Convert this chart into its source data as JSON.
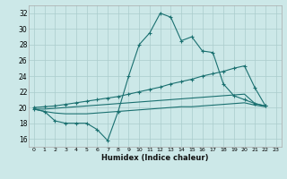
{
  "xlabel": "Humidex (Indice chaleur)",
  "background_color": "#cce8e8",
  "grid_color": "#aacccc",
  "line_color": "#1a7070",
  "xlim": [
    -0.5,
    23.5
  ],
  "ylim": [
    15,
    33
  ],
  "xticks": [
    0,
    1,
    2,
    3,
    4,
    5,
    6,
    7,
    8,
    9,
    10,
    11,
    12,
    13,
    14,
    15,
    16,
    17,
    18,
    19,
    20,
    21,
    22,
    23
  ],
  "yticks": [
    16,
    18,
    20,
    22,
    24,
    26,
    28,
    30,
    32
  ],
  "curve_main": [
    19.8,
    19.5,
    18.3,
    18.0,
    18.0,
    18.0,
    17.2,
    15.8,
    19.5,
    24.0,
    28.0,
    29.5,
    32.0,
    31.5,
    28.5,
    29.0,
    27.2,
    27.0,
    23.0,
    21.5,
    21.0,
    20.5,
    20.2
  ],
  "curve_top": [
    20.0,
    20.1,
    20.2,
    20.4,
    20.6,
    20.8,
    21.0,
    21.2,
    21.4,
    21.7,
    22.0,
    22.3,
    22.6,
    23.0,
    23.3,
    23.6,
    24.0,
    24.3,
    24.6,
    25.0,
    25.3,
    22.5,
    20.2
  ],
  "curve_mid": [
    19.8,
    19.8,
    19.9,
    20.0,
    20.1,
    20.2,
    20.3,
    20.4,
    20.5,
    20.6,
    20.7,
    20.8,
    20.9,
    21.0,
    21.1,
    21.2,
    21.3,
    21.4,
    21.5,
    21.6,
    21.7,
    20.5,
    20.2
  ],
  "curve_bot": [
    19.8,
    19.5,
    19.3,
    19.2,
    19.2,
    19.2,
    19.3,
    19.4,
    19.5,
    19.6,
    19.7,
    19.8,
    19.9,
    20.0,
    20.1,
    20.1,
    20.2,
    20.3,
    20.4,
    20.5,
    20.6,
    20.3,
    20.1
  ]
}
